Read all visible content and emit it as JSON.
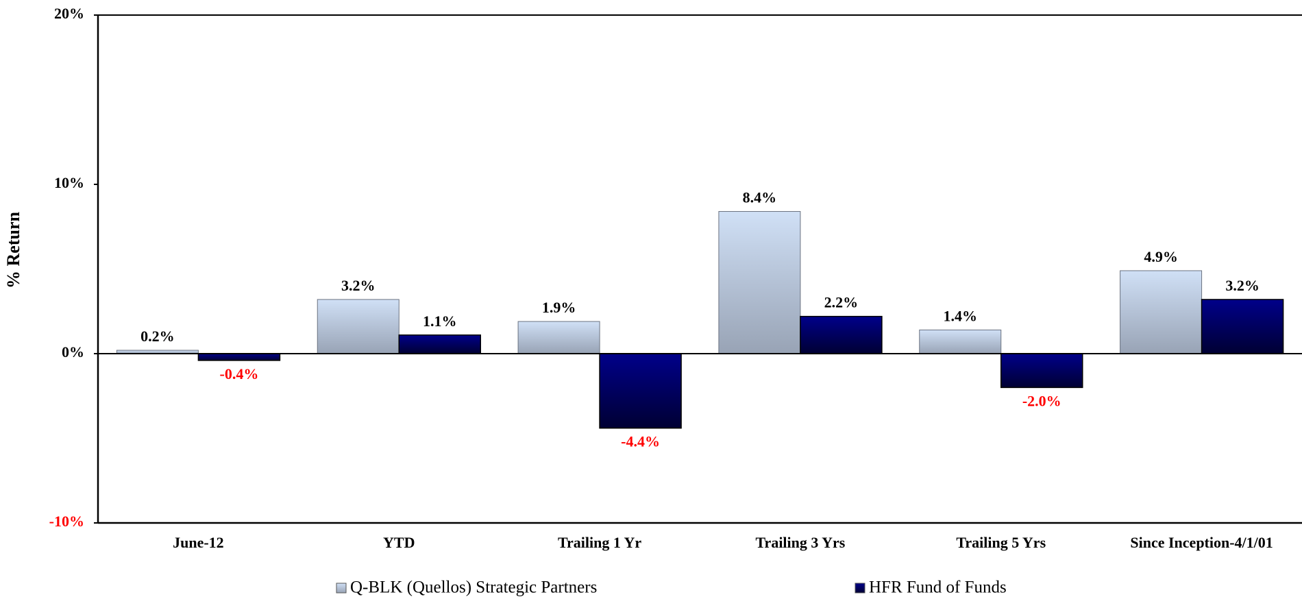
{
  "chart_data": {
    "type": "bar",
    "y_label": "% Return",
    "categories": [
      "June-12",
      "YTD",
      "Trailing 1 Yr",
      "Trailing 3 Yrs",
      "Trailing 5 Yrs",
      "Since Inception-4/1/01"
    ],
    "series": [
      {
        "name": "Q-BLK (Quellos) Strategic Partners",
        "color": "#c6d6ee",
        "values": [
          0.2,
          3.2,
          1.9,
          8.4,
          1.4,
          4.9
        ],
        "value_labels": [
          "0.2%",
          "3.2%",
          "1.9%",
          "8.4%",
          "1.4%",
          "4.9%"
        ]
      },
      {
        "name": "HFR Fund of Funds",
        "color": "#000066",
        "values": [
          -0.4,
          1.1,
          -4.4,
          2.2,
          -2.0,
          3.2
        ],
        "value_labels": [
          "-0.4%",
          "1.1%",
          "-4.4%",
          "2.2%",
          "-2.0%",
          "3.2%"
        ]
      }
    ],
    "ylim": [
      -10,
      20
    ],
    "yticks": [
      {
        "value": -10,
        "label": "-10%"
      },
      {
        "value": 0,
        "label": "0%"
      },
      {
        "value": 10,
        "label": "10%"
      },
      {
        "value": 20,
        "label": "20%"
      }
    ],
    "negative_color": "#ff0000",
    "grid": false,
    "legend": "bottom"
  }
}
